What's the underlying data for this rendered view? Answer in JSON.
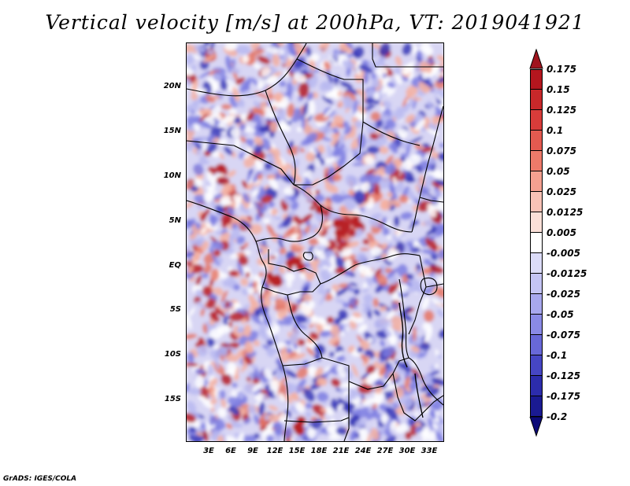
{
  "title": "Vertical velocity [m/s] at 200hPa, VT: 2019041921",
  "credit": "GrADS: IGES/COLA",
  "latitude_labels": [
    "20N",
    "15N",
    "10N",
    "5N",
    "EQ",
    "5S",
    "10S",
    "15S"
  ],
  "longitude_labels": [
    "3E",
    "6E",
    "9E",
    "12E",
    "15E",
    "18E",
    "21E",
    "24E",
    "27E",
    "30E",
    "33E"
  ],
  "colorbar": {
    "labels": [
      "0.175",
      "0.15",
      "0.125",
      "0.1",
      "0.075",
      "0.05",
      "0.025",
      "0.0125",
      "0.005",
      "-0.005",
      "-0.0125",
      "-0.025",
      "-0.05",
      "-0.075",
      "-0.1",
      "-0.125",
      "-0.175",
      "-0.2"
    ],
    "colors": [
      "#a0141e",
      "#b4161e",
      "#c8282a",
      "#d83c3a",
      "#e45a50",
      "#ee7a6a",
      "#f4a090",
      "#f8c2b6",
      "#fbe0d8",
      "#ffffff",
      "#dcdcf8",
      "#c4c4f4",
      "#a8a8ee",
      "#8a8ae6",
      "#6868d8",
      "#4646c4",
      "#2c2cac",
      "#1a1a92",
      "#0c0a78"
    ]
  },
  "map_palette": {
    "blue_dark": "#3a3ab8",
    "blue_mid": "#7c7ce0",
    "blue_light": "#b8b8f0",
    "red_light": "#f4b0a0",
    "red_mid": "#e47868",
    "red_dark": "#b82028"
  }
}
